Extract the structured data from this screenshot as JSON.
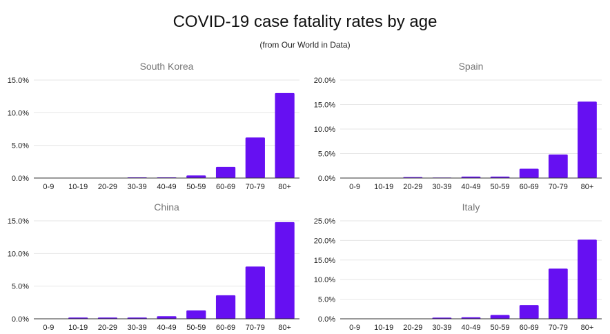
{
  "figure": {
    "title": "COVID-19 case fatality rates by age",
    "subtitle": "(from Our World in Data)"
  },
  "colors": {
    "bar": "#6610f2",
    "gridline": "#e6e6e6",
    "baseline": "#333333",
    "tick_text": "#222222",
    "panel_title": "#757575"
  },
  "chart_data": [
    {
      "type": "bar",
      "title": "South Korea",
      "categories": [
        "0-9",
        "10-19",
        "20-29",
        "30-39",
        "40-49",
        "50-59",
        "60-69",
        "70-79",
        "80+"
      ],
      "values": [
        0.0,
        0.0,
        0.0,
        0.1,
        0.1,
        0.4,
        1.7,
        6.2,
        13.0
      ],
      "xlabel": "",
      "ylabel": "",
      "ylim": [
        0,
        15
      ],
      "yticks": [
        0,
        5,
        10,
        15
      ],
      "ytick_labels": [
        "0.0%",
        "5.0%",
        "10.0%",
        "15.0%"
      ],
      "grid": true
    },
    {
      "type": "bar",
      "title": "Spain",
      "categories": [
        "0-9",
        "10-19",
        "20-29",
        "30-39",
        "40-49",
        "50-59",
        "60-69",
        "70-79",
        "80+"
      ],
      "values": [
        0.0,
        0.0,
        0.2,
        0.1,
        0.3,
        0.3,
        1.9,
        4.8,
        15.6
      ],
      "xlabel": "",
      "ylabel": "",
      "ylim": [
        0,
        20
      ],
      "yticks": [
        0,
        5,
        10,
        15,
        20
      ],
      "ytick_labels": [
        "0.0%",
        "5.0%",
        "10.0%",
        "15.0%",
        "20.0%"
      ],
      "grid": true
    },
    {
      "type": "bar",
      "title": "China",
      "categories": [
        "0-9",
        "10-19",
        "20-29",
        "30-39",
        "40-49",
        "50-59",
        "60-69",
        "70-79",
        "80+"
      ],
      "values": [
        0.0,
        0.2,
        0.2,
        0.2,
        0.4,
        1.3,
        3.6,
        8.0,
        14.8
      ],
      "xlabel": "",
      "ylabel": "",
      "ylim": [
        0,
        15
      ],
      "yticks": [
        0,
        5,
        10,
        15
      ],
      "ytick_labels": [
        "0.0%",
        "5.0%",
        "10.0%",
        "15.0%"
      ],
      "grid": true
    },
    {
      "type": "bar",
      "title": "Italy",
      "categories": [
        "0-9",
        "10-19",
        "20-29",
        "30-39",
        "40-49",
        "50-59",
        "60-69",
        "70-79",
        "80+"
      ],
      "values": [
        0.0,
        0.0,
        0.0,
        0.3,
        0.4,
        1.0,
        3.5,
        12.8,
        20.2
      ],
      "xlabel": "",
      "ylabel": "",
      "ylim": [
        0,
        25
      ],
      "yticks": [
        0,
        5,
        10,
        15,
        20,
        25
      ],
      "ytick_labels": [
        "0.0%",
        "5.0%",
        "10.0%",
        "15.0%",
        "20.0%",
        "25.0%"
      ],
      "grid": true
    }
  ]
}
